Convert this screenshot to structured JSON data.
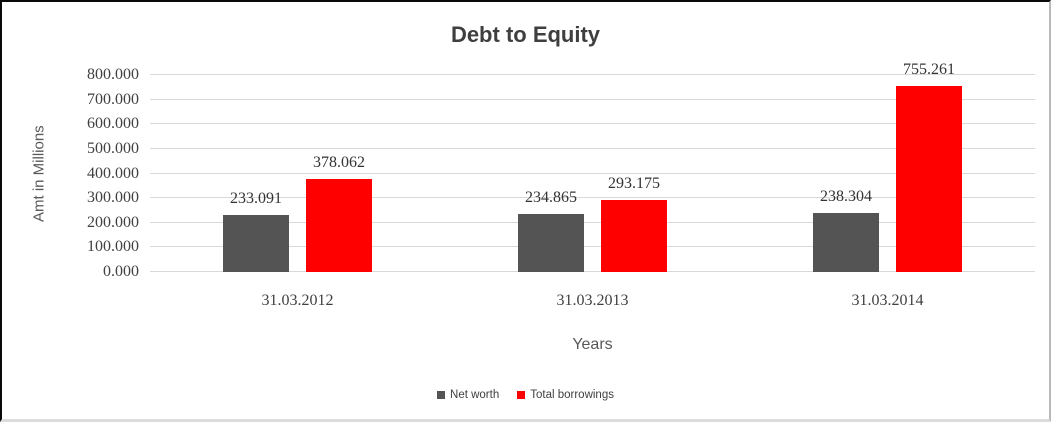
{
  "chart_data": {
    "type": "bar",
    "title": "Debt to Equity",
    "xlabel": "Years",
    "ylabel": "Amt in Millions",
    "categories": [
      "31.03.2012",
      "31.03.2013",
      "31.03.2014"
    ],
    "series": [
      {
        "name": "Net worth",
        "color": "#545454",
        "values": [
          233.091,
          234.865,
          238.304
        ],
        "labels": [
          "233.091",
          "234.865",
          "238.304"
        ]
      },
      {
        "name": "Total borrowings",
        "color": "#ff0000",
        "values": [
          378.062,
          293.175,
          755.261
        ],
        "labels": [
          "378.062",
          "293.175",
          "755.261"
        ]
      }
    ],
    "ylim": [
      0,
      800
    ],
    "ytick_step": 100,
    "ytick_labels": [
      "0.000",
      "100.000",
      "200.000",
      "300.000",
      "400.000",
      "500.000",
      "600.000",
      "700.000",
      "800.000"
    ],
    "grid": true,
    "gridline_color": "#d9d9d9",
    "legend_position": "bottom"
  }
}
